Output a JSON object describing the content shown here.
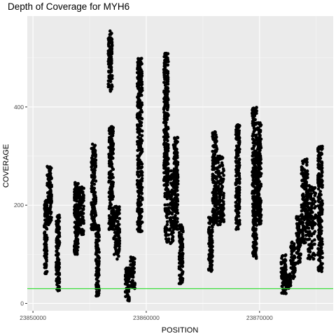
{
  "chart_data": {
    "type": "scatter",
    "title": "Depth of Coverage for MYH6",
    "xlabel": "POSITION",
    "ylabel": "COVERAGE",
    "xlim": [
      23849500,
      23876500
    ],
    "ylim": [
      -15,
      585
    ],
    "x_ticks": [
      23850000,
      23860000,
      23870000
    ],
    "x_tick_labels": [
      "23850000",
      "23860000",
      "23870000"
    ],
    "y_ticks": [
      0,
      200,
      400
    ],
    "y_tick_labels": [
      "0",
      "200",
      "400"
    ],
    "grid": true,
    "legend": "none",
    "reference_line": {
      "y": 30,
      "color": "#33dd33"
    },
    "point_color": "#000000",
    "panel_background": "#ebebeb",
    "clusters": [
      {
        "x_start": 23851000,
        "x_end": 23851250,
        "y_low": 60,
        "y_high": 210
      },
      {
        "x_start": 23851250,
        "x_end": 23851650,
        "y_low": 160,
        "y_high": 280
      },
      {
        "x_start": 23852050,
        "x_end": 23852350,
        "y_low": 25,
        "y_high": 180
      },
      {
        "x_start": 23853650,
        "x_end": 23854000,
        "y_low": 100,
        "y_high": 250
      },
      {
        "x_start": 23854000,
        "x_end": 23854500,
        "y_low": 140,
        "y_high": 240
      },
      {
        "x_start": 23855150,
        "x_end": 23855550,
        "y_low": 150,
        "y_high": 325
      },
      {
        "x_start": 23855550,
        "x_end": 23855850,
        "y_low": 15,
        "y_high": 160
      },
      {
        "x_start": 23856650,
        "x_end": 23857000,
        "y_low": 430,
        "y_high": 555
      },
      {
        "x_start": 23856700,
        "x_end": 23857100,
        "y_low": 150,
        "y_high": 360
      },
      {
        "x_start": 23857100,
        "x_end": 23857650,
        "y_low": 90,
        "y_high": 200
      },
      {
        "x_start": 23858150,
        "x_end": 23858500,
        "y_low": 5,
        "y_high": 75
      },
      {
        "x_start": 23858550,
        "x_end": 23859000,
        "y_low": 30,
        "y_high": 95
      },
      {
        "x_start": 23859200,
        "x_end": 23859650,
        "y_low": 145,
        "y_high": 500
      },
      {
        "x_start": 23861550,
        "x_end": 23861950,
        "y_low": 240,
        "y_high": 510
      },
      {
        "x_start": 23861650,
        "x_end": 23862400,
        "y_low": 120,
        "y_high": 270
      },
      {
        "x_start": 23862400,
        "x_end": 23862800,
        "y_low": 150,
        "y_high": 340
      },
      {
        "x_start": 23862900,
        "x_end": 23863250,
        "y_low": 40,
        "y_high": 160
      },
      {
        "x_start": 23865500,
        "x_end": 23865850,
        "y_low": 65,
        "y_high": 175
      },
      {
        "x_start": 23865850,
        "x_end": 23866250,
        "y_low": 160,
        "y_high": 350
      },
      {
        "x_start": 23866300,
        "x_end": 23866850,
        "y_low": 160,
        "y_high": 300
      },
      {
        "x_start": 23867900,
        "x_end": 23868250,
        "y_low": 150,
        "y_high": 365
      },
      {
        "x_start": 23869350,
        "x_end": 23869800,
        "y_low": 200,
        "y_high": 400
      },
      {
        "x_start": 23869400,
        "x_end": 23869750,
        "y_low": 90,
        "y_high": 200
      },
      {
        "x_start": 23869800,
        "x_end": 23870150,
        "y_low": 160,
        "y_high": 370
      },
      {
        "x_start": 23871900,
        "x_end": 23872350,
        "y_low": 18,
        "y_high": 100
      },
      {
        "x_start": 23872350,
        "x_end": 23872750,
        "y_low": 30,
        "y_high": 60
      },
      {
        "x_start": 23872750,
        "x_end": 23873150,
        "y_low": 50,
        "y_high": 125
      },
      {
        "x_start": 23873250,
        "x_end": 23873650,
        "y_low": 80,
        "y_high": 180
      },
      {
        "x_start": 23873700,
        "x_end": 23874250,
        "y_low": 120,
        "y_high": 295
      },
      {
        "x_start": 23874250,
        "x_end": 23874950,
        "y_low": 90,
        "y_high": 240
      },
      {
        "x_start": 23875150,
        "x_end": 23875550,
        "y_low": 65,
        "y_high": 320
      }
    ]
  }
}
